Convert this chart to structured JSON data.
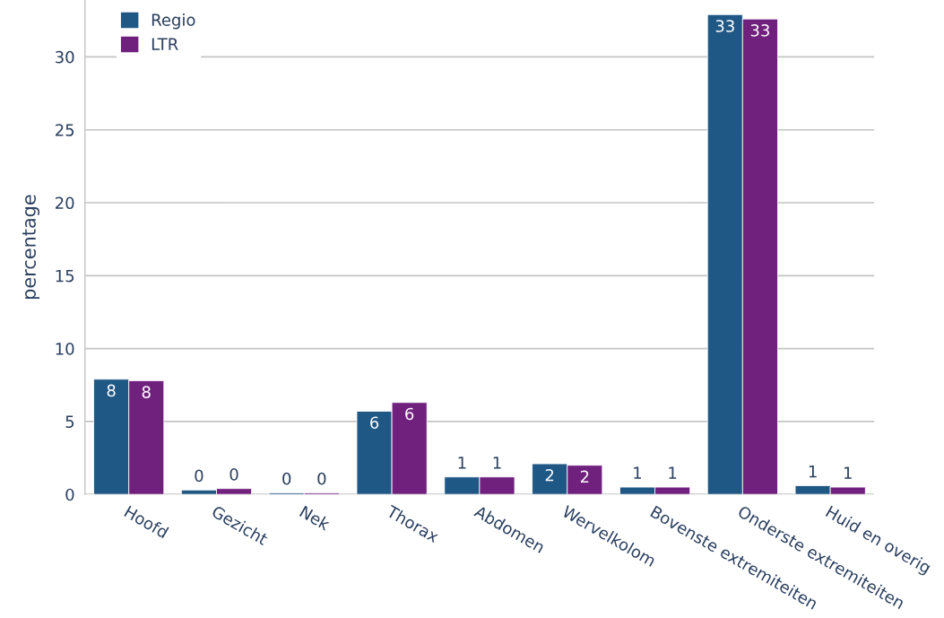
{
  "chart_data": {
    "type": "bar",
    "ylabel": "percentage",
    "categories": [
      "Hoofd",
      "Gezicht",
      "Nek",
      "Thorax",
      "Abdomen",
      "Wervelkolom",
      "Bovenste extremiteiten",
      "Onderste extremiteiten",
      "Huid en overig"
    ],
    "series": [
      {
        "name": "Regio",
        "color": "#1f5785",
        "values": [
          7.9,
          0.3,
          0.1,
          5.7,
          1.2,
          2.1,
          0.5,
          32.9,
          0.6
        ],
        "value_labels": [
          "8",
          "0",
          "0",
          "6",
          "1",
          "2",
          "1",
          "33",
          "1"
        ]
      },
      {
        "name": "LTR",
        "color": "#70217d",
        "values": [
          7.8,
          0.4,
          0.1,
          6.3,
          1.2,
          2.0,
          0.5,
          32.6,
          0.5
        ],
        "value_labels": [
          "8",
          "0",
          "0",
          "6",
          "1",
          "2",
          "1",
          "33",
          "1"
        ]
      }
    ],
    "ylim": [
      0,
      33.9
    ],
    "yticks": [
      0,
      5,
      10,
      15,
      20,
      25,
      30
    ],
    "grid": "y",
    "legend": "top left"
  }
}
